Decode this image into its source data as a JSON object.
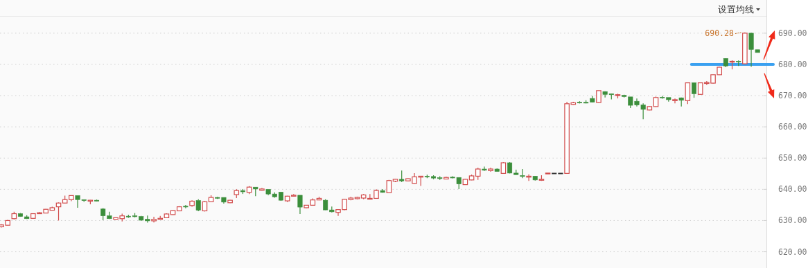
{
  "chart_data": {
    "type": "candlestick",
    "categories": [
      null,
      null,
      null,
      null,
      null,
      null,
      null,
      null,
      null,
      null,
      null,
      null,
      null,
      null,
      null,
      null,
      null,
      null,
      null,
      null,
      null,
      null,
      null,
      null,
      null,
      null,
      null,
      null,
      null,
      null,
      null,
      null,
      null,
      null,
      null,
      null,
      null,
      null,
      null,
      null,
      null,
      null,
      null,
      null,
      null,
      null,
      null,
      null,
      null,
      null,
      null,
      null,
      null,
      null,
      null,
      null,
      null,
      null,
      null,
      null,
      null,
      null,
      null,
      null,
      null,
      null,
      null,
      null,
      null,
      null,
      null,
      null,
      null,
      null,
      null,
      null,
      null,
      null,
      null,
      null,
      null,
      null,
      null,
      null,
      null,
      null,
      null,
      null,
      null,
      null,
      null,
      null,
      null,
      null,
      null,
      null,
      null,
      null,
      null,
      null,
      null,
      null,
      null,
      null,
      null,
      null,
      null,
      null,
      null,
      null,
      null,
      null,
      null,
      null,
      null,
      null,
      null,
      null,
      null,
      null
    ],
    "ohlc": [
      [
        628.0,
        628.8,
        627.8,
        628.6
      ],
      [
        628.5,
        630.2,
        628.4,
        630.0
      ],
      [
        630.6,
        632.8,
        630.4,
        632.2
      ],
      [
        632.2,
        632.4,
        631.2,
        631.3
      ],
      [
        631.2,
        631.7,
        630.5,
        630.6
      ],
      [
        630.7,
        632.3,
        630.6,
        632.2
      ],
      [
        632.2,
        632.7,
        632.1,
        632.5
      ],
      [
        632.4,
        633.7,
        632.3,
        633.6
      ],
      [
        633.3,
        634.4,
        633.2,
        634.1
      ],
      [
        634.4,
        635.8,
        630.0,
        635.6
      ],
      [
        635.6,
        638.0,
        635.5,
        636.7
      ],
      [
        636.7,
        638.1,
        636.2,
        638.0
      ],
      [
        638.0,
        638.0,
        634.1,
        636.7
      ],
      [
        636.7,
        636.7,
        636.0,
        636.4
      ],
      [
        636.2,
        636.6,
        635.2,
        636.5
      ],
      [
        636.5,
        636.7,
        636.1,
        636.2
      ],
      [
        633.7,
        634.0,
        630.1,
        631.5
      ],
      [
        631.5,
        632.8,
        630.5,
        630.6
      ],
      [
        630.4,
        631.0,
        630.3,
        630.9
      ],
      [
        630.6,
        632.2,
        629.7,
        631.5
      ],
      [
        631.4,
        631.8,
        630.9,
        631.3
      ],
      [
        631.5,
        632.4,
        631.0,
        631.4
      ],
      [
        631.3,
        631.5,
        630.0,
        630.1
      ],
      [
        630.4,
        631.6,
        629.3,
        629.9
      ],
      [
        629.9,
        631.2,
        629.4,
        630.4
      ],
      [
        630.4,
        631.5,
        630.3,
        630.7
      ],
      [
        630.9,
        632.3,
        630.8,
        632.1
      ],
      [
        631.9,
        633.3,
        631.8,
        633.2
      ],
      [
        633.1,
        634.6,
        633.0,
        634.4
      ],
      [
        634.6,
        635.0,
        633.9,
        634.4
      ],
      [
        634.8,
        636.5,
        634.4,
        636.2
      ],
      [
        636.4,
        636.8,
        633.0,
        633.3
      ],
      [
        633.1,
        636.2,
        632.9,
        636.0
      ],
      [
        636.0,
        638.1,
        635.9,
        637.4
      ],
      [
        637.4,
        637.6,
        636.9,
        637.3
      ],
      [
        637.4,
        637.4,
        635.4,
        635.9
      ],
      [
        635.7,
        636.6,
        635.6,
        636.5
      ],
      [
        638.3,
        640.0,
        637.2,
        639.6
      ],
      [
        639.6,
        640.1,
        638.5,
        639.2
      ],
      [
        639.0,
        641.0,
        638.5,
        640.7
      ],
      [
        640.7,
        640.7,
        637.8,
        640.1
      ],
      [
        639.7,
        640.4,
        639.6,
        640.1
      ],
      [
        640.0,
        640.0,
        638.1,
        638.5
      ],
      [
        638.5,
        639.0,
        637.3,
        637.6
      ],
      [
        639.1,
        639.2,
        636.3,
        636.5
      ],
      [
        636.3,
        637.9,
        635.9,
        637.8
      ],
      [
        637.8,
        638.5,
        637.7,
        638.1
      ],
      [
        638.1,
        638.1,
        632.1,
        634.3
      ],
      [
        634.1,
        635.0,
        634.0,
        634.9
      ],
      [
        634.9,
        637.1,
        634.8,
        636.6
      ],
      [
        636.6,
        637.6,
        636.5,
        637.1
      ],
      [
        636.5,
        636.8,
        633.3,
        633.4
      ],
      [
        633.4,
        634.5,
        632.6,
        632.8
      ],
      [
        632.6,
        633.6,
        631.5,
        633.5
      ],
      [
        633.5,
        637.0,
        633.3,
        636.8
      ],
      [
        636.7,
        637.6,
        636.5,
        637.2
      ],
      [
        637.0,
        637.6,
        636.8,
        637.4
      ],
      [
        637.2,
        638.5,
        636.8,
        638.2
      ],
      [
        636.9,
        638.5,
        636.8,
        637.1
      ],
      [
        637.1,
        640.0,
        637.0,
        639.6
      ],
      [
        639.6,
        640.1,
        638.9,
        639.0
      ],
      [
        638.9,
        643.0,
        638.8,
        642.8
      ],
      [
        642.6,
        643.3,
        642.3,
        643.2
      ],
      [
        643.2,
        646.0,
        642.3,
        642.7
      ],
      [
        642.7,
        643.5,
        642.6,
        643.4
      ],
      [
        641.9,
        645.2,
        641.8,
        644.0
      ],
      [
        643.9,
        644.3,
        641.1,
        644.2
      ],
      [
        644.2,
        644.7,
        643.6,
        644.0
      ],
      [
        644.1,
        644.5,
        643.2,
        643.6
      ],
      [
        643.7,
        644.2,
        643.0,
        643.5
      ],
      [
        643.3,
        644.0,
        643.2,
        643.8
      ],
      [
        643.9,
        644.2,
        643.5,
        643.7
      ],
      [
        643.8,
        643.8,
        640.1,
        641.7
      ],
      [
        641.5,
        643.3,
        641.4,
        643.2
      ],
      [
        643.0,
        644.7,
        642.9,
        644.3
      ],
      [
        644.2,
        646.9,
        643.0,
        646.5
      ],
      [
        646.5,
        647.3,
        645.9,
        646.1
      ],
      [
        646.0,
        646.9,
        645.6,
        646.5
      ],
      [
        646.5,
        646.7,
        645.6,
        645.7
      ],
      [
        645.1,
        648.7,
        645.0,
        648.5
      ],
      [
        648.5,
        648.7,
        645.1,
        645.2
      ],
      [
        645.2,
        646.3,
        644.6,
        644.7
      ],
      [
        644.4,
        646.5,
        643.6,
        644.1
      ],
      [
        643.9,
        644.8,
        642.7,
        644.2
      ],
      [
        644.2,
        644.3,
        642.8,
        643.0
      ],
      [
        642.9,
        644.5,
        642.7,
        643.2
      ],
      [
        645.1,
        645.2,
        645.1,
        645.2
      ],
      [
        645.2,
        645.2,
        645.2,
        645.2
      ],
      [
        645.2,
        645.2,
        645.2,
        645.2
      ],
      [
        645.1,
        668.0,
        645.0,
        667.4
      ],
      [
        667.2,
        668.0,
        667.1,
        667.7
      ],
      [
        667.9,
        668.2,
        667.5,
        667.7
      ],
      [
        667.9,
        668.5,
        667.5,
        667.6
      ],
      [
        669.1,
        669.9,
        667.8,
        667.9
      ],
      [
        667.8,
        671.7,
        667.7,
        671.6
      ],
      [
        671.3,
        671.4,
        669.4,
        670.4
      ],
      [
        670.6,
        670.7,
        668.8,
        670.3
      ],
      [
        670.1,
        670.6,
        669.1,
        670.3
      ],
      [
        670.1,
        670.3,
        669.4,
        669.7
      ],
      [
        669.6,
        669.6,
        666.0,
        666.9
      ],
      [
        668.2,
        669.1,
        666.5,
        667.0
      ],
      [
        667.0,
        667.5,
        662.4,
        665.6
      ],
      [
        665.4,
        666.7,
        665.3,
        666.5
      ],
      [
        666.5,
        669.7,
        666.4,
        669.4
      ],
      [
        669.5,
        669.9,
        669.0,
        669.3
      ],
      [
        669.4,
        669.4,
        668.1,
        668.7
      ],
      [
        668.4,
        669.1,
        667.5,
        668.7
      ],
      [
        669.3,
        669.4,
        666.5,
        668.5
      ],
      [
        668.4,
        674.2,
        667.3,
        674.1
      ],
      [
        674.1,
        674.2,
        669.3,
        670.6
      ],
      [
        670.4,
        674.2,
        670.3,
        674.1
      ],
      [
        673.9,
        674.7,
        673.4,
        674.2
      ],
      [
        674.0,
        676.8,
        673.9,
        676.7
      ],
      [
        676.7,
        679.2,
        676.6,
        679.1
      ],
      [
        681.9,
        682.0,
        679.1,
        679.5
      ],
      [
        680.8,
        681.3,
        678.4,
        681.0
      ],
      [
        681.0,
        681.3,
        679.5,
        680.8
      ],
      [
        680.2,
        690.28,
        680.0,
        690.0
      ],
      [
        690.0,
        690.1,
        679.2,
        684.8
      ],
      [
        684.7,
        684.7,
        683.8,
        683.8
      ]
    ],
    "colors": [
      "#d14b4b",
      "#d14b4b",
      "#d14b4b",
      "#3b8e3b",
      "#3b8e3b",
      "#d14b4b",
      "#d14b4b",
      "#d14b4b",
      "#d14b4b",
      "#d14b4b",
      "#d14b4b",
      "#d14b4b",
      "#3b8e3b",
      "#3b8e3b",
      "#d14b4b",
      "#3b8e3b",
      "#3b8e3b",
      "#3b8e3b",
      "#d14b4b",
      "#d14b4b",
      "#3b8e3b",
      "#3b8e3b",
      "#3b8e3b",
      "#3b8e3b",
      "#d14b4b",
      "#d14b4b",
      "#d14b4b",
      "#d14b4b",
      "#d14b4b",
      "#3b8e3b",
      "#d14b4b",
      "#3b8e3b",
      "#d14b4b",
      "#d14b4b",
      "#3b8e3b",
      "#3b8e3b",
      "#d14b4b",
      "#d14b4b",
      "#3b8e3b",
      "#d14b4b",
      "#3b8e3b",
      "#d14b4b",
      "#3b8e3b",
      "#3b8e3b",
      "#3b8e3b",
      "#d14b4b",
      "#d14b4b",
      "#3b8e3b",
      "#d14b4b",
      "#d14b4b",
      "#d14b4b",
      "#3b8e3b",
      "#3b8e3b",
      "#d14b4b",
      "#d14b4b",
      "#d14b4b",
      "#d14b4b",
      "#d14b4b",
      "#d14b4b",
      "#d14b4b",
      "#3b8e3b",
      "#d14b4b",
      "#d14b4b",
      "#3b8e3b",
      "#d14b4b",
      "#d14b4b",
      "#d14b4b",
      "#3b8e3b",
      "#3b8e3b",
      "#3b8e3b",
      "#d14b4b",
      "#3b8e3b",
      "#3b8e3b",
      "#d14b4b",
      "#d14b4b",
      "#d14b4b",
      "#3b8e3b",
      "#d14b4b",
      "#3b8e3b",
      "#d14b4b",
      "#3b8e3b",
      "#3b8e3b",
      "#3b8e3b",
      "#d14b4b",
      "#3b8e3b",
      "#d14b4b",
      "#d14b4b",
      "#333333",
      "#333333",
      "#d14b4b",
      "#d14b4b",
      "#3b8e3b",
      "#3b8e3b",
      "#3b8e3b",
      "#d14b4b",
      "#3b8e3b",
      "#3b8e3b",
      "#d14b4b",
      "#3b8e3b",
      "#3b8e3b",
      "#3b8e3b",
      "#3b8e3b",
      "#d14b4b",
      "#d14b4b",
      "#3b8e3b",
      "#3b8e3b",
      "#d14b4b",
      "#3b8e3b",
      "#d14b4b",
      "#3b8e3b",
      "#d14b4b",
      "#d14b4b",
      "#d14b4b",
      "#d14b4b",
      "#3b8e3b",
      "#d14b4b",
      "#3b8e3b",
      "#d14b4b",
      "#3b8e3b",
      "#3b8e3b"
    ],
    "ylim": [
      614.8,
      695.3
    ],
    "yticks": [
      {
        "value": 620,
        "label": "620.00"
      },
      {
        "value": 630,
        "label": "630.00"
      },
      {
        "value": 640,
        "label": "640.00"
      },
      {
        "value": 650,
        "label": "650.00"
      },
      {
        "value": 660,
        "label": "660.00"
      },
      {
        "value": 670,
        "label": "670.00"
      },
      {
        "value": 680,
        "label": "680.00"
      },
      {
        "value": 690,
        "label": "690.00"
      }
    ],
    "tick_labels": "y",
    "grid": "y",
    "ref_lines": [
      {
        "axis": "y",
        "value": 680,
        "color": "#3aa0f0"
      }
    ],
    "annotations": [
      "设置均线",
      "690.28"
    ]
  }
}
